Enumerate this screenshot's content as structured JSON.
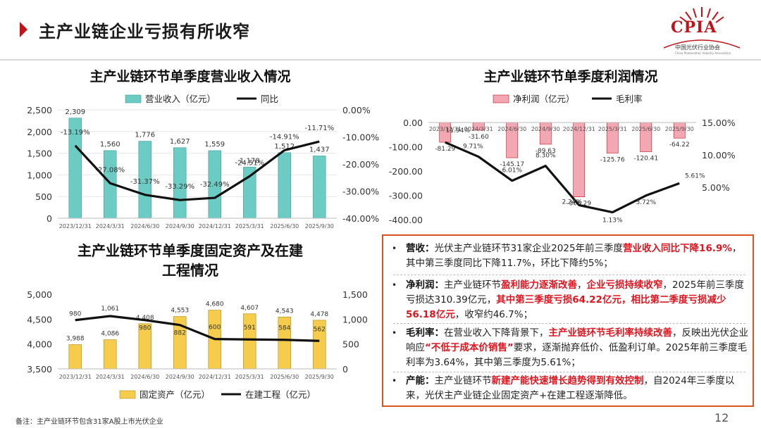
{
  "page": {
    "title": "主产业链企业亏损有所收窄",
    "logo_text": "CPIA",
    "logo_sub": "中国光伏行业协会",
    "logo_sub2": "China Photovoltaic Industry Association",
    "footnote": "备注：主产业链环节包含31家A股上市光伏企业",
    "page_number": "12"
  },
  "colors": {
    "accent": "#c0141b",
    "teal": "#6cccc4",
    "pink": "#f2a7b2",
    "gold": "#f6cc4c",
    "line": "#111111",
    "box_border": "#d9541e",
    "highlight": "#e0141e"
  },
  "chart_data": [
    {
      "id": "revenue",
      "type": "bar+line",
      "title": "主产业链环节单季度营业收入情况",
      "categories": [
        "2023/12/31",
        "2024/3/31",
        "2024/6/30",
        "2024/9/30",
        "2024/12/31",
        "2025/3/31",
        "2025/6/30",
        "2025/9/30"
      ],
      "series": [
        {
          "name": "营业收入（亿元）",
          "type": "bar",
          "axis": "left",
          "values": [
            2309,
            1560,
            1776,
            1627,
            1559,
            1178,
            1512,
            1437
          ],
          "labels": [
            "2,309",
            "1,560",
            "1,776",
            "1,627",
            "1,559",
            "1,178",
            "1,512",
            "1,437"
          ]
        },
        {
          "name": "同比",
          "type": "line",
          "axis": "right",
          "values": [
            -13.19,
            -27.08,
            -31.37,
            -33.29,
            -32.49,
            -24.51,
            -14.91,
            -11.71
          ],
          "labels": [
            "-13.19%",
            "-27.08%",
            "-31.37%",
            "-33.29%",
            "-32.49%",
            "-24.51%",
            "-14.91%",
            "-11.71%"
          ]
        }
      ],
      "left_axis": {
        "min": 0,
        "max": 2500,
        "ticks": [
          "0",
          "500",
          "1,000",
          "1,500",
          "2,000",
          "2,500"
        ]
      },
      "right_axis": {
        "min": -40,
        "max": 0,
        "ticks": [
          "0.00%",
          "-10.00%",
          "-20.00%",
          "-30.00%",
          "-40.00%"
        ]
      },
      "legend_position": "top"
    },
    {
      "id": "profit",
      "type": "bar+line",
      "title": "主产业链环节单季度利润情况",
      "categories": [
        "2023/12/31",
        "2024/3/31",
        "2024/6/30",
        "2024/9/30",
        "2024/12/31",
        "2025/3/31",
        "2025/6/30",
        "2025/9/30"
      ],
      "series": [
        {
          "name": "净利润（亿元）",
          "type": "bar",
          "axis": "left",
          "values": [
            -81.29,
            -31.6,
            -145.17,
            -89.63,
            -306.29,
            -125.76,
            -120.41,
            -64.22
          ],
          "labels": [
            "-81.29",
            "-31.60",
            "-145.17",
            "-89.63",
            "-306.29",
            "-125.76",
            "-120.41",
            "-64.22"
          ]
        },
        {
          "name": "毛利率",
          "type": "line",
          "axis": "right",
          "values": [
            11.94,
            9.71,
            6.01,
            8.3,
            2.24,
            1.13,
            3.72,
            5.61
          ],
          "labels": [
            "11.94%",
            "9.71%",
            "6.01%",
            "8.30%",
            "2.24%",
            "1.13%",
            "3.72%",
            "5.61%"
          ]
        }
      ],
      "left_axis": {
        "min": -400,
        "max": 0,
        "ticks": [
          "0.00",
          "-100.00",
          "-200.00",
          "-300.00",
          "-400.00"
        ]
      },
      "right_axis": {
        "min": 0,
        "max": 15,
        "ticks": [
          "15.00%",
          "10.00%",
          "5.00%"
        ]
      },
      "legend_position": "top"
    },
    {
      "id": "assets",
      "type": "bar+line",
      "title_line1": "主产业链环节单季度固定资产及在建",
      "title_line2": "工程情况",
      "categories": [
        "2023/12/31",
        "2024/3/31",
        "2024/6/30",
        "2024/9/30",
        "2024/12/31",
        "2025/3/31",
        "2025/6/30",
        "2025/9/30"
      ],
      "series": [
        {
          "name": "固定资产（亿元）",
          "type": "bar",
          "axis": "left",
          "values": [
            3988,
            4086,
            4408,
            4553,
            4680,
            4607,
            4543,
            4478
          ],
          "labels": [
            "3,988",
            "4,086",
            "4,408",
            "4,553",
            "4,680",
            "4,607",
            "4,543",
            "4,478"
          ]
        },
        {
          "name": "在建工程（亿元）",
          "type": "line",
          "axis": "right",
          "values": [
            980,
            1061,
            980,
            882,
            600,
            591,
            584,
            562
          ],
          "labels": [
            "980",
            "1,061",
            "980",
            "882",
            "600",
            "591",
            "584",
            "562"
          ]
        }
      ],
      "left_axis": {
        "min": 3500,
        "max": 5000,
        "ticks": [
          "3,500",
          "4,000",
          "4,500",
          "5,000"
        ]
      },
      "right_axis": {
        "min": 0,
        "max": 1500,
        "ticks": [
          "0",
          "500",
          "1,000",
          "1,500"
        ]
      },
      "legend_position": "bottom"
    }
  ],
  "summary": {
    "items": [
      {
        "keyword": "营收：",
        "segments": [
          {
            "t": "光伏主产业链环节31家企业2025年前三季度",
            "r": false
          },
          {
            "t": "营业收入同比下降16.9%",
            "r": true
          },
          {
            "t": "，其中第三季度同比下降11.7%，环比下降约5%；",
            "r": false
          }
        ]
      },
      {
        "keyword": "净利润：",
        "segments": [
          {
            "t": "主产业链环节",
            "r": false
          },
          {
            "t": "盈利能力逐渐改善",
            "r": true
          },
          {
            "t": "，",
            "r": false
          },
          {
            "t": "企业亏损持续收窄",
            "r": true
          },
          {
            "t": "，2025年前三季度亏损达310.39亿元，",
            "r": false
          },
          {
            "t": "其中第三季度亏损64.22亿元，相比第二季度亏损减少56.18亿元",
            "r": true
          },
          {
            "t": "，收窄约46.7%；",
            "r": false
          }
        ]
      },
      {
        "keyword": "毛利率：",
        "segments": [
          {
            "t": "在营业收入下降背景下，",
            "r": false
          },
          {
            "t": "主产业链环节毛利率持续改善",
            "r": true
          },
          {
            "t": "，反映出光伏企业响应",
            "r": false
          },
          {
            "t": "“不低于成本价销售”",
            "r": true
          },
          {
            "t": "要求，逐渐抛弃低价、低盈利订单。2025年前三季度毛利率为3.64%，其中第三季度为5.61%；",
            "r": false
          }
        ]
      },
      {
        "keyword": "产能：",
        "segments": [
          {
            "t": "主产业链环节",
            "r": false
          },
          {
            "t": "新建产能快速增长趋势得到有效控制",
            "r": true
          },
          {
            "t": "，自2024年三季度以来，光伏主产业链企业固定资产+在建工程逐渐降低。",
            "r": false
          }
        ]
      }
    ]
  }
}
